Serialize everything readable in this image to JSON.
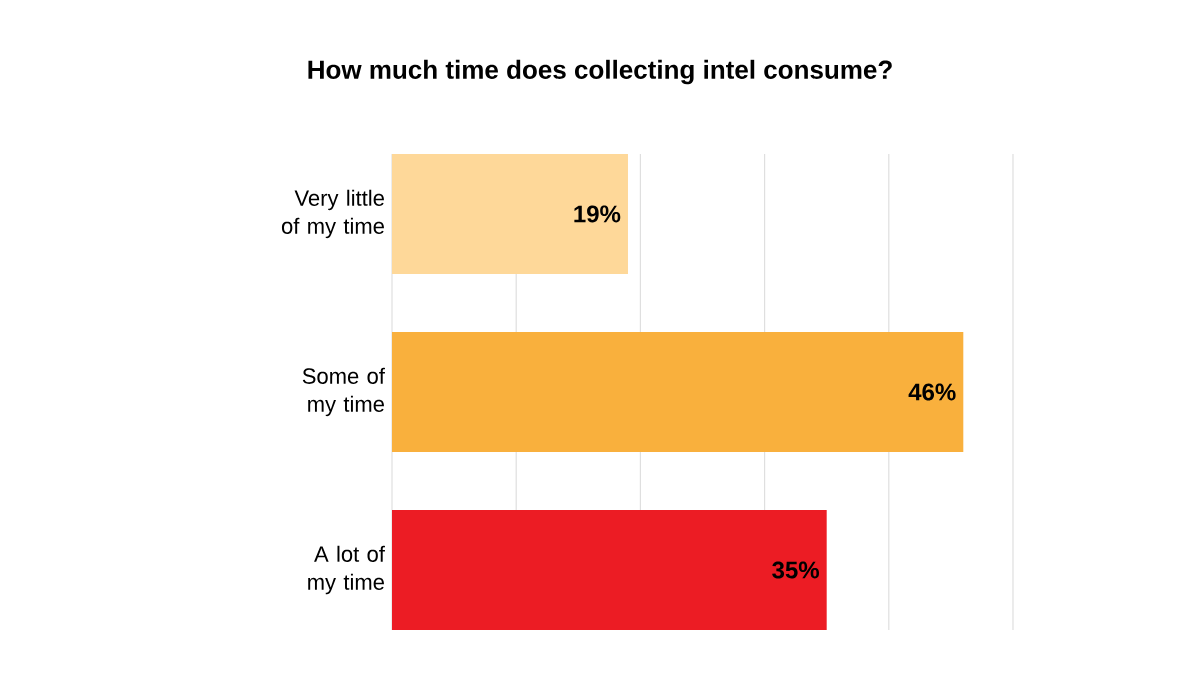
{
  "chart_data": {
    "type": "bar",
    "orientation": "horizontal",
    "title": "How much time does collecting intel consume?",
    "categories": [
      "Very little of my time",
      "Some of my time",
      "A lot of my time"
    ],
    "values": [
      19,
      46,
      35
    ],
    "colors": [
      "#fed899",
      "#f9b03d",
      "#ec1c24"
    ],
    "value_labels": [
      "19%",
      "46%",
      "35%"
    ],
    "xlim": [
      0,
      50
    ],
    "xticks": [
      {
        "value": 0,
        "label": null
      },
      {
        "value": 10,
        "label": null
      },
      {
        "value": 20,
        "label": null
      },
      {
        "value": 30,
        "label": null
      },
      {
        "value": 40,
        "label": null
      },
      {
        "value": 50,
        "label": null
      }
    ],
    "grid": "x",
    "tick_labels": "y"
  }
}
